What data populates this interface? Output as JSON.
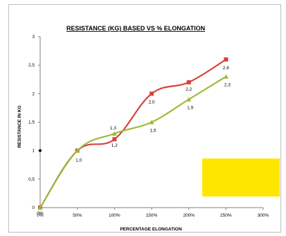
{
  "chart_data": {
    "type": "line",
    "title": "RESISTANCE (KG) BASED VS % ELONGATION",
    "xlabel": "PERCENTAGE ELONGATION",
    "ylabel": "RESISTANCE IN KG",
    "x_ticks": [
      "0%",
      "50%",
      "100%",
      "150%",
      "200%",
      "250%",
      "300%"
    ],
    "y_ticks": [
      "0",
      "0,5",
      "1",
      "1,5",
      "2",
      "2,5",
      "3"
    ],
    "xlim": [
      0,
      3
    ],
    "ylim": [
      0,
      3
    ],
    "x": [
      0,
      0.5,
      1.0,
      1.5,
      2.0,
      2.5
    ],
    "series": [
      {
        "color": "#d9413a",
        "marker": "square",
        "values": [
          0,
          1.0,
          1.2,
          2.0,
          2.2,
          2.6
        ],
        "labels": [
          "",
          "",
          "1,2",
          "2,0",
          "2,2",
          "2,6"
        ]
      },
      {
        "color": "#9bbb3c",
        "marker": "triangle",
        "values": [
          0,
          1.0,
          1.3,
          1.5,
          1.9,
          2.3
        ],
        "labels": [
          "0%",
          "1,0",
          "1,3",
          "1,5",
          "1,9",
          "2,3"
        ]
      }
    ],
    "highlight_box_color": "#ffe600",
    "grid": false
  }
}
